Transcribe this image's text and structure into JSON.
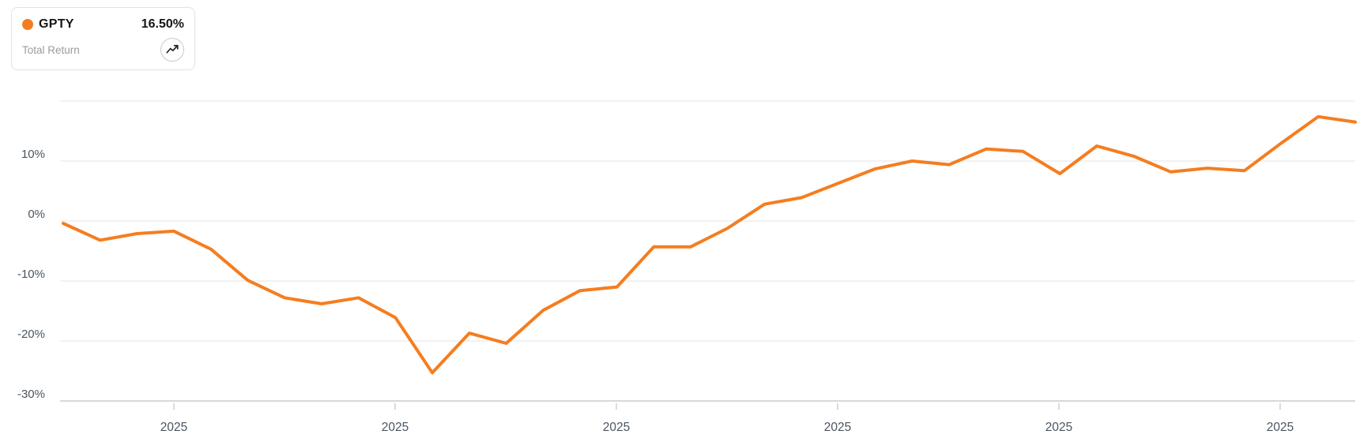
{
  "legend": {
    "symbol": "GPTY",
    "value": "16.50%",
    "sublabel": "Total Return",
    "dot_color": "#f57d1f",
    "trend_icon": "trending-up-icon"
  },
  "colors": {
    "line": "#f57d1f",
    "gridline": "#e9e9e9",
    "axis_line": "#d8d8d8",
    "tick": "#cfcfcf",
    "axis_text": "#4a5560"
  },
  "chart_data": {
    "type": "line",
    "title": "",
    "xlabel": "",
    "ylabel": "",
    "legend_position": "top-left",
    "grid": "horizontal",
    "ylim": [
      -31,
      21
    ],
    "y_tick_values": [
      20,
      10,
      0,
      -10,
      -20,
      -30
    ],
    "y_tick_labels": [
      "",
      "10%",
      "0%",
      "-10%",
      "-20%",
      "-30%"
    ],
    "x_tick_labels": [
      "2025",
      "2025",
      "2025",
      "2025",
      "2025",
      "2025"
    ],
    "series": [
      {
        "name": "GPTY",
        "color": "#f57d1f",
        "values": [
          -0.4,
          -3.2,
          -2.1,
          -1.7,
          -4.7,
          -9.9,
          -12.8,
          -13.8,
          -12.8,
          -16.1,
          -25.3,
          -18.7,
          -20.4,
          -14.9,
          -11.6,
          -11.0,
          -4.3,
          -4.3,
          -1.2,
          2.8,
          3.9,
          6.3,
          8.7,
          10.0,
          9.4,
          12.0,
          11.6,
          7.9,
          12.5,
          10.8,
          8.2,
          8.8,
          8.4,
          13.0,
          17.4,
          16.5
        ]
      }
    ]
  }
}
